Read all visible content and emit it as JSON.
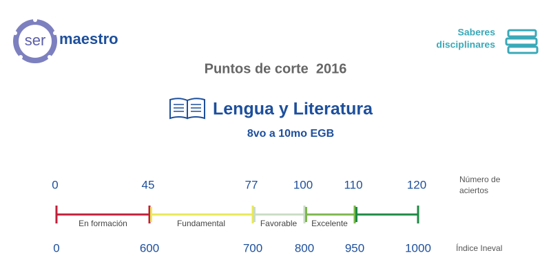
{
  "header": {
    "logo": {
      "part1": "ser",
      "part2": "maestro"
    },
    "badge": [
      "Saberes",
      "disciplinares"
    ],
    "title": "Puntos de corte  2016"
  },
  "subject": {
    "name": "Lengua y Literatura",
    "level": "8vo a 10mo EGB"
  },
  "scale": {
    "aciertos_label": [
      "Número de",
      "aciertos"
    ],
    "ineval_label": "Índice Ineval",
    "aciertos": [
      0,
      45,
      77,
      100,
      110,
      120
    ],
    "ineval": [
      0,
      600,
      700,
      800,
      950,
      1000
    ],
    "segments": [
      {
        "label": "En formación",
        "color": "#c0203a"
      },
      {
        "label": "Fundamental",
        "color": "#e8e85a"
      },
      {
        "label": "Favorable",
        "color": "#c9dcc4"
      },
      {
        "label": "Excelente",
        "color": "#7cb84c"
      },
      {
        "label": "",
        "color": "#1e8a44"
      }
    ]
  }
}
